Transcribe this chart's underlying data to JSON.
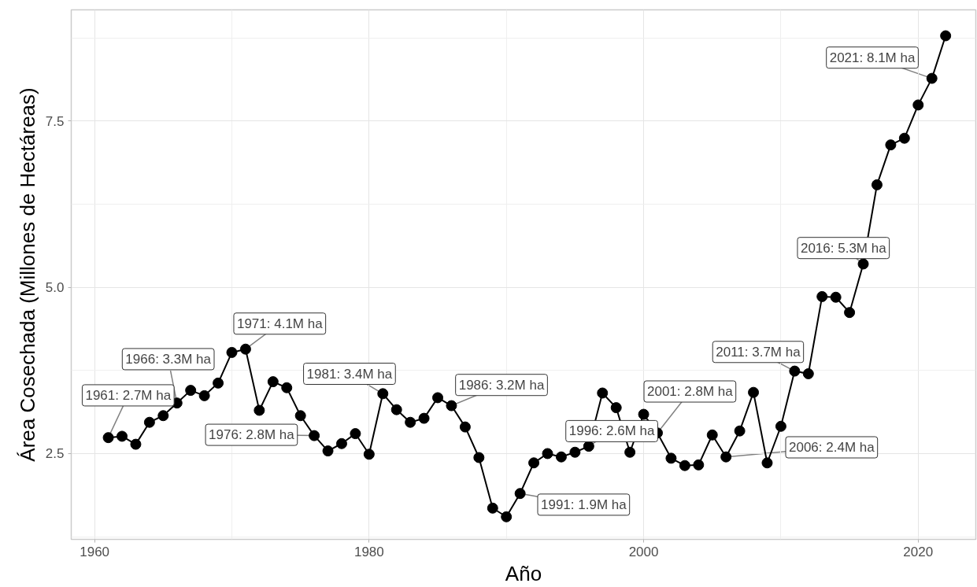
{
  "chart_data": {
    "type": "line",
    "xlabel": "Año",
    "ylabel": "Área Cosechada (Millones de Hectáreas)",
    "x": [
      1961,
      1962,
      1963,
      1964,
      1965,
      1966,
      1967,
      1968,
      1969,
      1970,
      1971,
      1972,
      1973,
      1974,
      1975,
      1976,
      1977,
      1978,
      1979,
      1980,
      1981,
      1982,
      1983,
      1984,
      1985,
      1986,
      1987,
      1988,
      1989,
      1990,
      1991,
      1992,
      1993,
      1994,
      1995,
      1996,
      1997,
      1998,
      1999,
      2000,
      2001,
      2002,
      2003,
      2004,
      2005,
      2006,
      2007,
      2008,
      2009,
      2010,
      2011,
      2012,
      2013,
      2014,
      2015,
      2016,
      2017,
      2018,
      2019,
      2020,
      2021,
      2022
    ],
    "series": [
      {
        "color": "#000000",
        "values": [
          2.74,
          2.76,
          2.64,
          2.97,
          3.07,
          3.26,
          3.45,
          3.37,
          3.56,
          4.02,
          4.07,
          3.15,
          3.58,
          3.49,
          3.07,
          2.77,
          2.54,
          2.65,
          2.8,
          2.49,
          3.4,
          3.16,
          2.97,
          3.03,
          3.34,
          3.22,
          2.9,
          2.44,
          1.68,
          1.55,
          1.9,
          2.36,
          2.5,
          2.45,
          2.52,
          2.61,
          3.41,
          3.19,
          2.52,
          3.09,
          2.81,
          2.43,
          2.32,
          2.33,
          2.78,
          2.45,
          2.84,
          3.42,
          2.36,
          2.91,
          3.74,
          3.7,
          4.86,
          4.85,
          4.62,
          5.35,
          6.54,
          7.14,
          7.24,
          7.74,
          8.14,
          8.78
        ]
      }
    ],
    "xlim": [
      1958.3,
      2024.2
    ],
    "ylim": [
      1.21,
      9.17
    ],
    "xticks": [
      1960,
      1980,
      2000,
      2020
    ],
    "yticks": [
      2.5,
      {
        "value": 5,
        "label": "5.0"
      },
      7.5
    ],
    "grid": true,
    "marker": "circle",
    "line_style": "solid",
    "annotations": [
      {
        "text": "1961: 2.7M ha",
        "x": 1961,
        "y": 2.74
      },
      {
        "text": "1966: 3.3M ha",
        "x": 1966,
        "y": 3.26
      },
      {
        "text": "1971: 4.1M ha",
        "x": 1971,
        "y": 4.07
      },
      {
        "text": "1976: 2.8M ha",
        "x": 1976,
        "y": 2.77
      },
      {
        "text": "1981: 3.4M ha",
        "x": 1981,
        "y": 3.4
      },
      {
        "text": "1986: 3.2M ha",
        "x": 1986,
        "y": 3.22
      },
      {
        "text": "1991: 1.9M ha",
        "x": 1991,
        "y": 1.9
      },
      {
        "text": "1996: 2.6M ha",
        "x": 1996,
        "y": 2.61
      },
      {
        "text": "2001: 2.8M ha",
        "x": 2001,
        "y": 2.81
      },
      {
        "text": "2006: 2.4M ha",
        "x": 2006,
        "y": 2.45
      },
      {
        "text": "2011: 3.7M ha",
        "x": 2011,
        "y": 3.74
      },
      {
        "text": "2016: 5.3M ha",
        "x": 2016,
        "y": 5.35
      },
      {
        "text": "2021: 8.1M ha",
        "x": 2021,
        "y": 8.14
      }
    ]
  }
}
